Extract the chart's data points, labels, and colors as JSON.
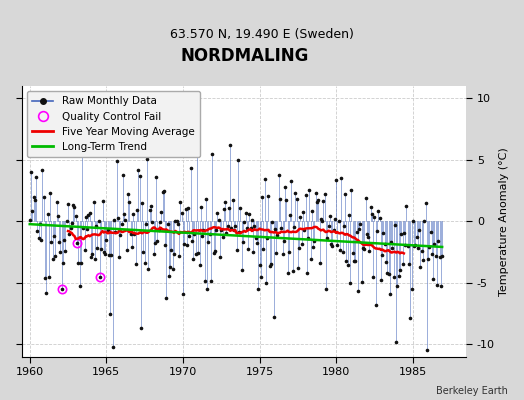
{
  "title": "NORDMALING",
  "subtitle": "63.570 N, 19.490 E (Sweden)",
  "ylabel": "Temperature Anomaly (°C)",
  "credit": "Berkeley Earth",
  "xlim": [
    1959.5,
    1988.5
  ],
  "ylim": [
    -11,
    11
  ],
  "yticks": [
    -10,
    -5,
    0,
    5,
    10
  ],
  "xticks": [
    1960,
    1965,
    1970,
    1975,
    1980,
    1985
  ],
  "bg_color": "#d8d8d8",
  "plot_bg_color": "#ffffff",
  "raw_line_color": "#4466bb",
  "raw_dot_color": "#111111",
  "ma_color": "#ee0000",
  "trend_color": "#00bb00",
  "qc_color": "#ff00ff",
  "start_year": 1960,
  "n_months": 324,
  "seed": 17,
  "noise_scale": 2.2,
  "trend_slope": -0.008,
  "trend_intercept": 0.3,
  "grid_color": "#cccccc",
  "grid_style": "--",
  "legend_loc": "upper left",
  "legend_fontsize": 7.5,
  "title_fontsize": 12,
  "subtitle_fontsize": 9,
  "tick_fontsize": 8,
  "ylabel_fontsize": 8,
  "figsize": [
    5.24,
    4.0
  ],
  "dpi": 100
}
